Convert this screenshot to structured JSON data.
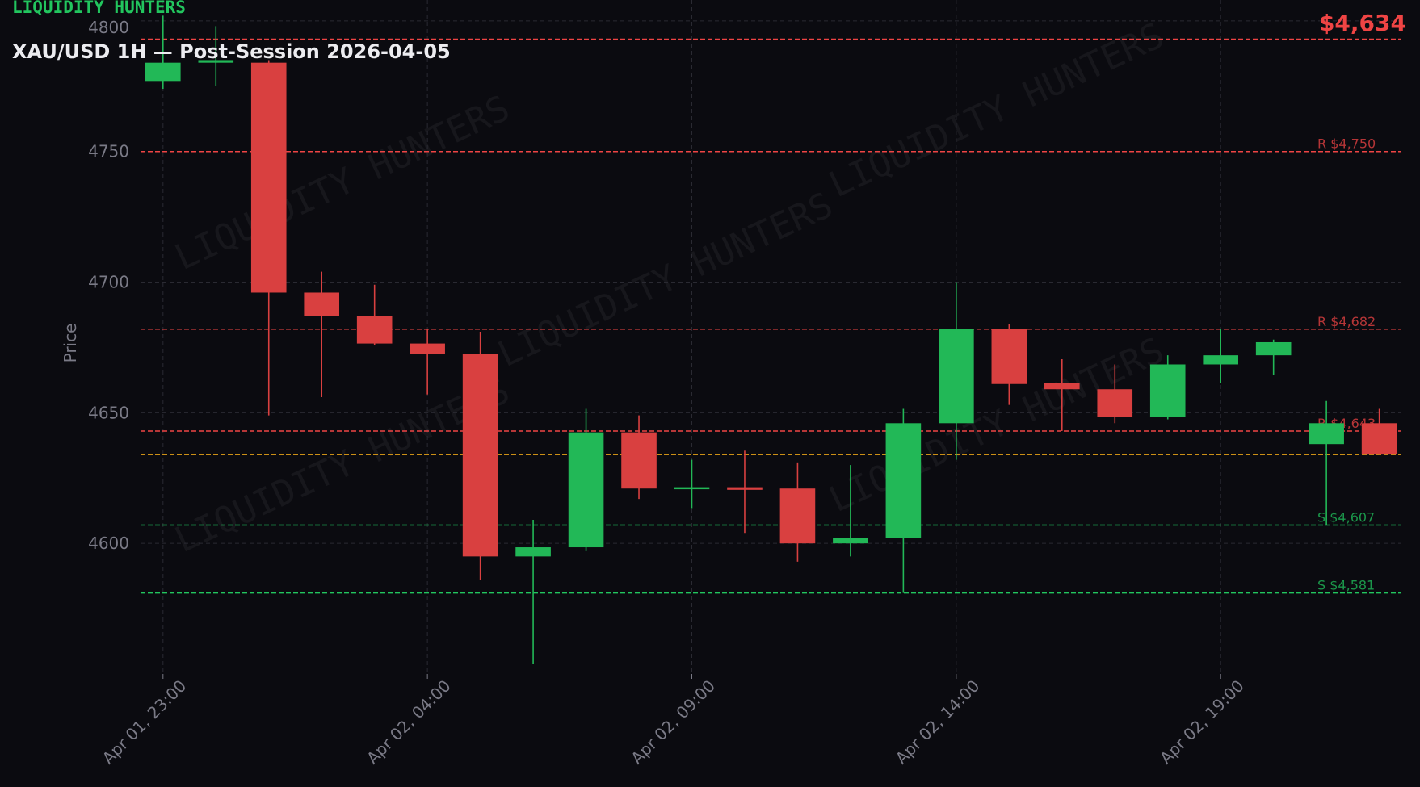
{
  "header": {
    "brand": "LIQUIDITY HUNTERS",
    "title": "XAU/USD 1H — Post-Session 2026-04-05",
    "current_price_label": "$4,634"
  },
  "watermark": "LIQUIDITY HUNTERS",
  "colors": {
    "background": "#0b0b10",
    "up": "#22b857",
    "down": "#d94040",
    "resistance": "#ef4444",
    "support": "#22c55e",
    "current": "#e8a317",
    "grid": "#2a2a32",
    "text": "#7a7a86"
  },
  "chart_data": {
    "type": "candlestick",
    "title": "XAU/USD 1H — Post-Session 2026-04-05",
    "ylabel": "Price",
    "xlabel": "",
    "ylim": [
      4550,
      4808
    ],
    "grid": true,
    "yticks": [
      4600,
      4650,
      4700,
      4750,
      4800
    ],
    "xticks": [
      {
        "index": 0,
        "label": "Apr 01, 23:00"
      },
      {
        "index": 5,
        "label": "Apr 02, 04:00"
      },
      {
        "index": 10,
        "label": "Apr 02, 09:00"
      },
      {
        "index": 15,
        "label": "Apr 02, 14:00"
      },
      {
        "index": 20,
        "label": "Apr 02, 19:00"
      }
    ],
    "candles": [
      {
        "time": "Apr 01, 23:00",
        "open": 4777,
        "high": 4802,
        "low": 4774,
        "close": 4784
      },
      {
        "time": "Apr 02, 00:00",
        "open": 4784,
        "high": 4798,
        "low": 4775,
        "close": 4785
      },
      {
        "time": "Apr 02, 01:00",
        "open": 4784,
        "high": 4785,
        "low": 4649,
        "close": 4696
      },
      {
        "time": "Apr 02, 02:00",
        "open": 4696,
        "high": 4704,
        "low": 4656,
        "close": 4687
      },
      {
        "time": "Apr 02, 03:00",
        "open": 4687,
        "high": 4699,
        "low": 4676,
        "close": 4676.5
      },
      {
        "time": "Apr 02, 04:00",
        "open": 4676.5,
        "high": 4682,
        "low": 4657,
        "close": 4672.5
      },
      {
        "time": "Apr 02, 05:00",
        "open": 4672.5,
        "high": 4681,
        "low": 4586,
        "close": 4595
      },
      {
        "time": "Apr 02, 06:00",
        "open": 4595,
        "high": 4609,
        "low": 4554,
        "close": 4598.5
      },
      {
        "time": "Apr 02, 07:00",
        "open": 4598.5,
        "high": 4651.5,
        "low": 4597,
        "close": 4642.5
      },
      {
        "time": "Apr 02, 08:00",
        "open": 4642.5,
        "high": 4649,
        "low": 4617,
        "close": 4621
      },
      {
        "time": "Apr 02, 09:00",
        "open": 4621,
        "high": 4632,
        "low": 4613.5,
        "close": 4621.5
      },
      {
        "time": "Apr 02, 10:00",
        "open": 4621.5,
        "high": 4635.5,
        "low": 4604,
        "close": 4620.5
      },
      {
        "time": "Apr 02, 11:00",
        "open": 4621,
        "high": 4631,
        "low": 4593,
        "close": 4600
      },
      {
        "time": "Apr 02, 12:00",
        "open": 4600,
        "high": 4630,
        "low": 4595,
        "close": 4602
      },
      {
        "time": "Apr 02, 13:00",
        "open": 4602,
        "high": 4651.5,
        "low": 4581,
        "close": 4646
      },
      {
        "time": "Apr 02, 14:00",
        "open": 4646,
        "high": 4700,
        "low": 4632,
        "close": 4682
      },
      {
        "time": "Apr 02, 15:00",
        "open": 4682,
        "high": 4684,
        "low": 4653,
        "close": 4661
      },
      {
        "time": "Apr 02, 16:00",
        "open": 4661.5,
        "high": 4670.5,
        "low": 4643,
        "close": 4659
      },
      {
        "time": "Apr 02, 17:00",
        "open": 4659,
        "high": 4668.5,
        "low": 4646,
        "close": 4648.5
      },
      {
        "time": "Apr 02, 18:00",
        "open": 4648.5,
        "high": 4672,
        "low": 4647.5,
        "close": 4668.5
      },
      {
        "time": "Apr 02, 19:00",
        "open": 4668.5,
        "high": 4682,
        "low": 4661.5,
        "close": 4672
      },
      {
        "time": "Apr 02, 20:00",
        "open": 4672,
        "high": 4678,
        "low": 4664.5,
        "close": 4677
      },
      {
        "time": "Apr 02, 21:00",
        "open": 4638,
        "high": 4654.5,
        "low": 4607,
        "close": 4646
      },
      {
        "time": "Apr 02, 22:00",
        "open": 4646,
        "high": 4651.5,
        "low": 4634,
        "close": 4634
      }
    ],
    "levels": [
      {
        "kind": "resistance",
        "value": 4793,
        "label": ""
      },
      {
        "kind": "resistance",
        "value": 4750,
        "label": "R $4,750"
      },
      {
        "kind": "resistance",
        "value": 4682,
        "label": "R $4,682"
      },
      {
        "kind": "resistance",
        "value": 4643,
        "label": "R $4,643"
      },
      {
        "kind": "current",
        "value": 4634,
        "label": ""
      },
      {
        "kind": "support",
        "value": 4607,
        "label": "S $4,607"
      },
      {
        "kind": "support",
        "value": 4581,
        "label": "S $4,581"
      }
    ]
  }
}
